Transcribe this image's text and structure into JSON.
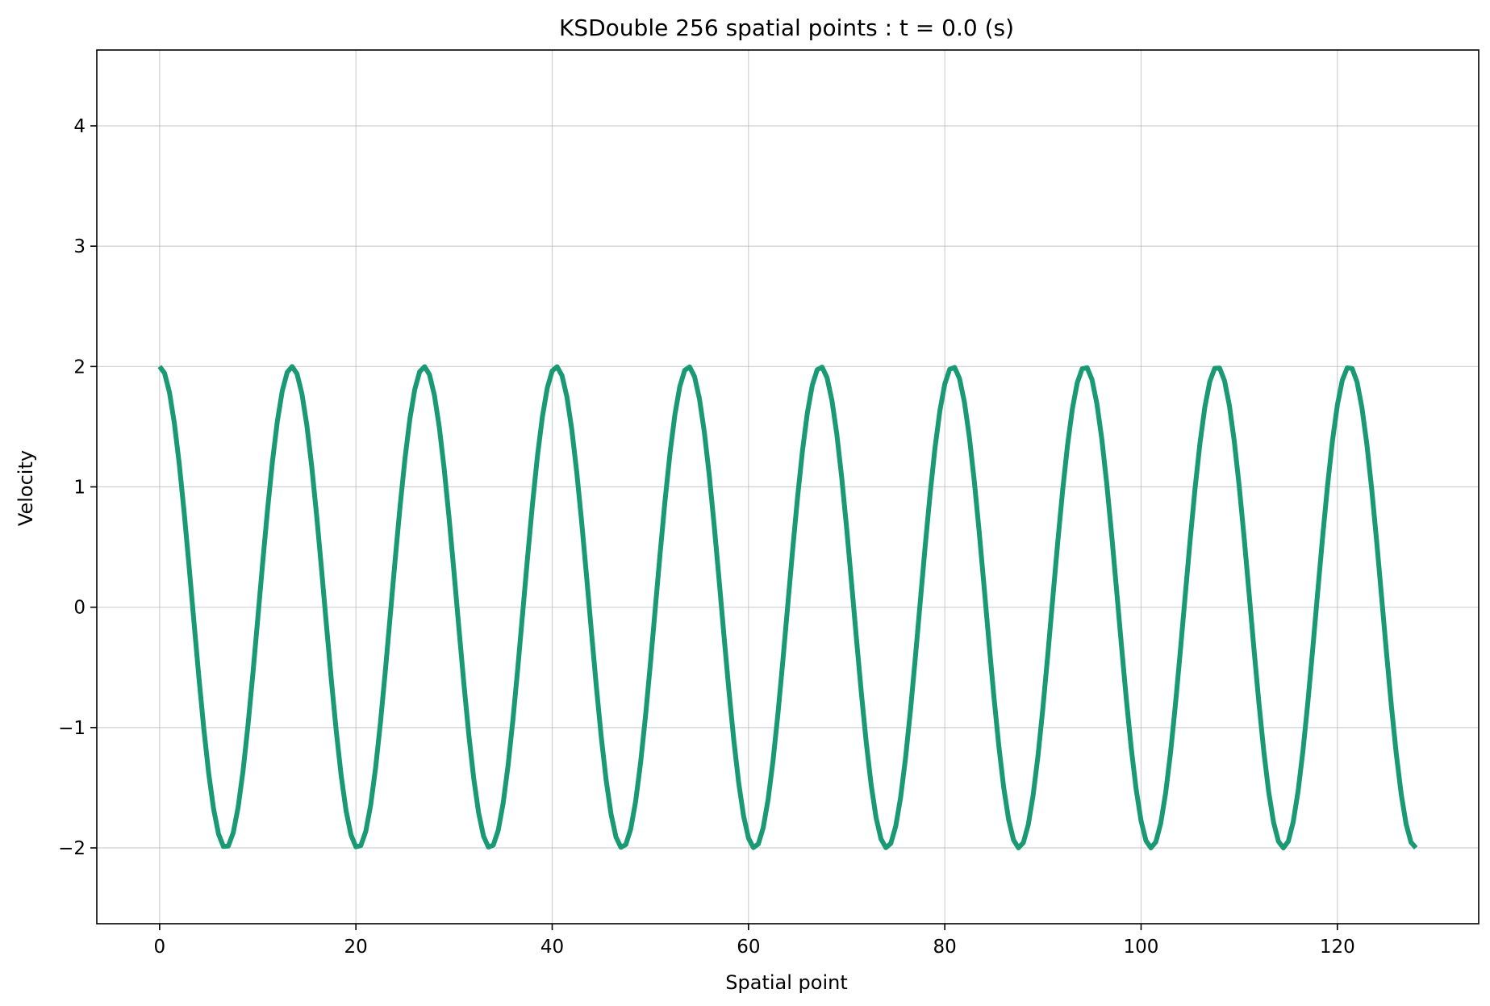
{
  "chart_data": {
    "type": "line",
    "title": "KSDouble 256 spatial points : t = 0.0 (s)",
    "xlabel": "Spatial point",
    "ylabel": "Velocity",
    "xlim": [
      -6.4,
      134.4
    ],
    "ylim": [
      -2.63,
      4.63
    ],
    "xticks": [
      0,
      20,
      40,
      60,
      80,
      100,
      120
    ],
    "yticks": [
      -2,
      -1,
      0,
      1,
      2,
      3,
      4
    ],
    "xtick_labels": [
      "0",
      "20",
      "40",
      "60",
      "80",
      "100",
      "120"
    ],
    "ytick_labels": [
      "−2",
      "−1",
      "0",
      "1",
      "2",
      "3",
      "4"
    ],
    "grid": true,
    "legend": "none",
    "line_color": "#1a9a74",
    "series": [
      {
        "x_start": 0,
        "x_end": 128,
        "x_step": 0.5,
        "amplitude": 2.0,
        "period": 13.47,
        "phase": 0,
        "form": "y = amplitude * cos(2*pi*x/period + phase)"
      }
    ]
  }
}
